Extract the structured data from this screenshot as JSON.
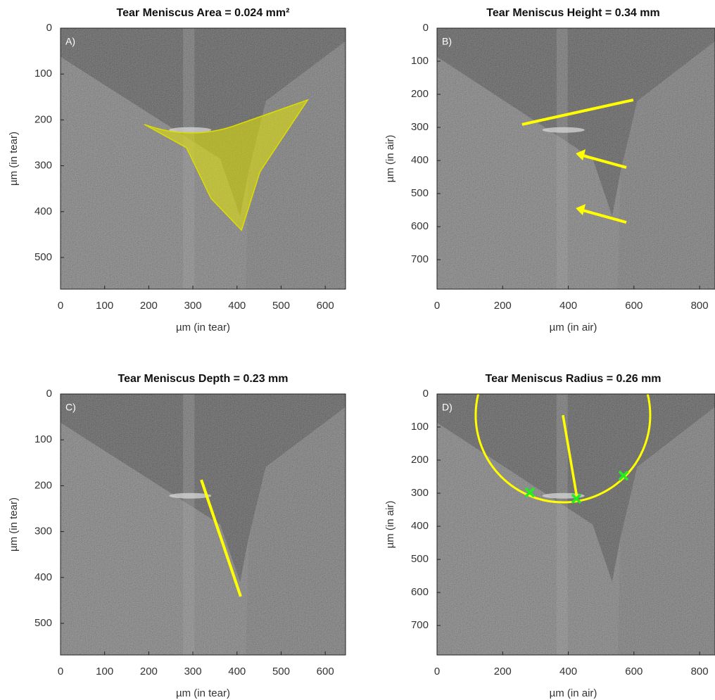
{
  "chart_data": [
    {
      "type": "image",
      "title": "Tear Meniscus Area = 0.024 mm²",
      "panel_label": "A)",
      "x_label": "µm (in tear)",
      "y_label": "µm (in tear)",
      "xlim": [
        0,
        646
      ],
      "ylim": [
        0,
        569
      ],
      "xticks": [
        0,
        100,
        200,
        300,
        400,
        500,
        600
      ],
      "yticks": [
        0,
        100,
        200,
        300,
        400,
        500
      ]
    },
    {
      "type": "image",
      "title": "Tear Meniscus Height = 0.34 mm",
      "panel_label": "B)",
      "x_label": "µm (in air)",
      "y_label": "µm (in air)",
      "xlim": [
        0,
        847
      ],
      "ylim": [
        0,
        789
      ],
      "xticks": [
        0,
        200,
        400,
        600,
        800
      ],
      "yticks": [
        0,
        100,
        200,
        300,
        400,
        500,
        600,
        700
      ]
    },
    {
      "type": "image",
      "title": "Tear Meniscus Depth = 0.23 mm",
      "panel_label": "C)",
      "x_label": "µm (in tear)",
      "y_label": "µm (in tear)",
      "xlim": [
        0,
        646
      ],
      "ylim": [
        0,
        569
      ],
      "xticks": [
        0,
        100,
        200,
        300,
        400,
        500,
        600
      ],
      "yticks": [
        0,
        100,
        200,
        300,
        400,
        500
      ]
    },
    {
      "type": "image",
      "title": "Tear Meniscus Radius = 0.26 mm",
      "panel_label": "D)",
      "x_label": "µm (in air)",
      "y_label": "µm (in air)",
      "xlim": [
        0,
        847
      ],
      "ylim": [
        0,
        789
      ],
      "xticks": [
        0,
        200,
        400,
        600,
        800
      ],
      "yticks": [
        0,
        100,
        200,
        300,
        400,
        500,
        600,
        700
      ]
    }
  ]
}
